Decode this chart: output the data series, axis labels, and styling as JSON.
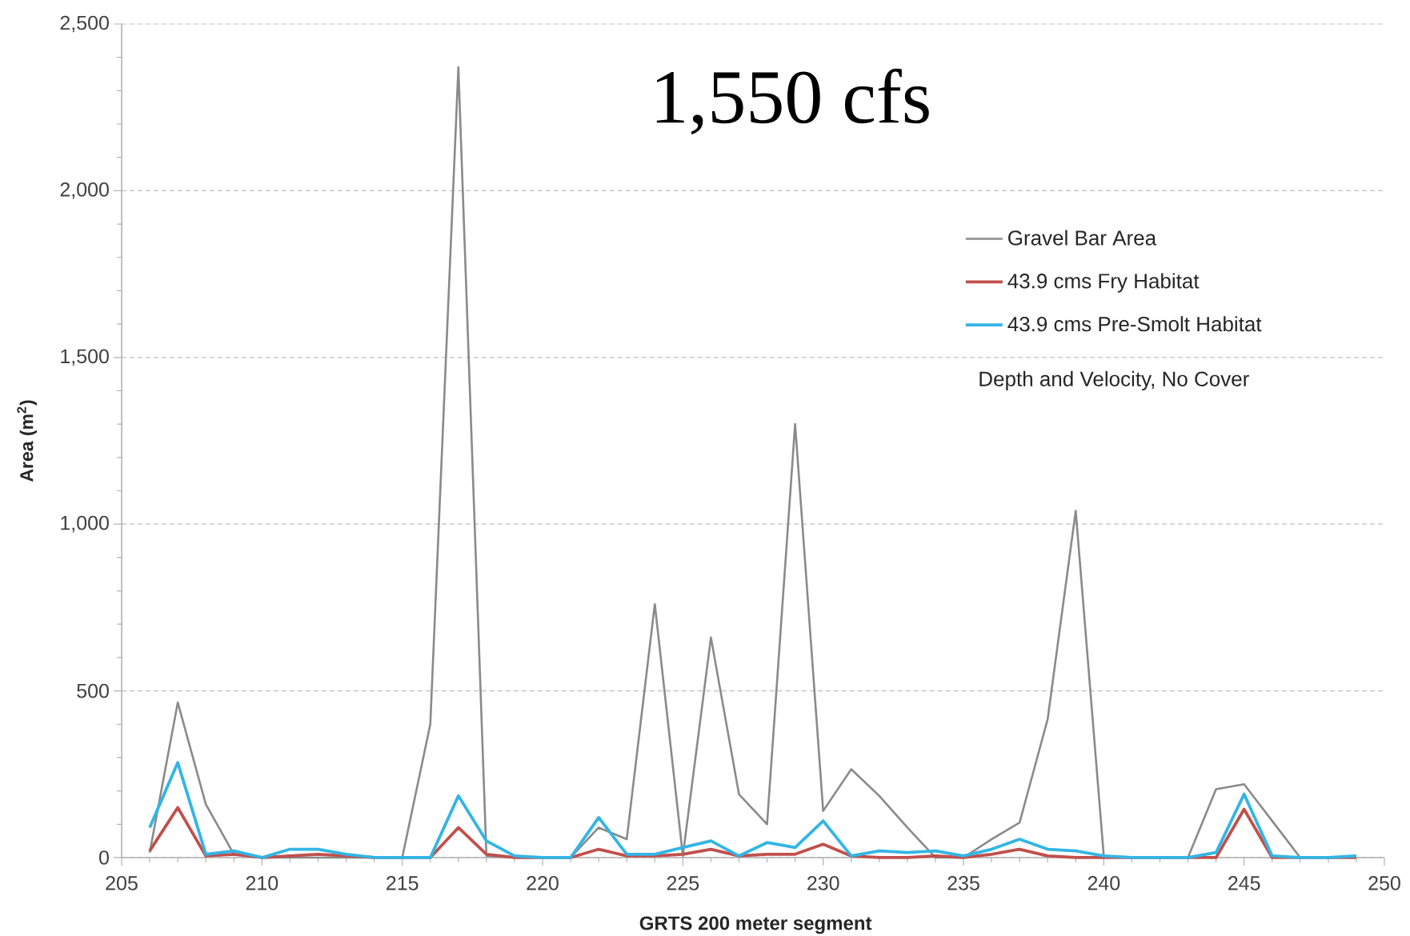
{
  "chart_data": {
    "type": "line",
    "title": "1,550 cfs",
    "xlabel": "GRTS 200 meter segment",
    "ylabel": "Area (m$^{2}$)",
    "annotations": [
      "Depth and Velocity, No Cover"
    ],
    "x": [
      206,
      207,
      208,
      209,
      210,
      211,
      212,
      213,
      214,
      215,
      216,
      217,
      218,
      219,
      220,
      221,
      222,
      223,
      224,
      225,
      226,
      227,
      228,
      229,
      230,
      231,
      232,
      233,
      234,
      235,
      236,
      237,
      238,
      239,
      240,
      241,
      242,
      243,
      244,
      245,
      246,
      247,
      248,
      249
    ],
    "series": [
      {
        "name": "Gravel Bar Area",
        "color": "#8a8a8a",
        "values": [
          15,
          465,
          160,
          10,
          0,
          0,
          0,
          0,
          0,
          0,
          400,
          2370,
          5,
          0,
          0,
          0,
          90,
          55,
          760,
          5,
          660,
          190,
          100,
          1300,
          140,
          265,
          185,
          90,
          0,
          0,
          55,
          105,
          415,
          1040,
          5,
          0,
          0,
          0,
          205,
          220,
          110,
          0,
          0,
          5
        ]
      },
      {
        "name": "43.9 cms Fry Habitat",
        "color": "#c0504d",
        "values": [
          20,
          150,
          5,
          10,
          0,
          5,
          10,
          5,
          0,
          0,
          0,
          90,
          10,
          0,
          0,
          0,
          25,
          5,
          5,
          10,
          25,
          5,
          10,
          10,
          40,
          5,
          0,
          0,
          5,
          0,
          10,
          25,
          5,
          0,
          0,
          0,
          0,
          0,
          0,
          145,
          0,
          0,
          0,
          0
        ]
      },
      {
        "name": "43.9 cms Pre-Smolt Habitat",
        "color": "#33b5e5",
        "values": [
          90,
          285,
          10,
          20,
          0,
          25,
          25,
          10,
          0,
          0,
          0,
          185,
          50,
          5,
          0,
          0,
          120,
          10,
          10,
          30,
          50,
          5,
          45,
          30,
          110,
          5,
          20,
          15,
          20,
          5,
          25,
          55,
          25,
          20,
          5,
          0,
          0,
          0,
          15,
          190,
          5,
          0,
          0,
          5
        ]
      }
    ],
    "xlim": [
      205,
      250
    ],
    "ylim": [
      0,
      2500
    ],
    "xticks": [
      205,
      {
        "value": 206,
        "label": null
      },
      {
        "value": 207,
        "label": null
      },
      {
        "value": 208,
        "label": null
      },
      {
        "value": 209,
        "label": null
      },
      210,
      {
        "value": 211,
        "label": null
      },
      {
        "value": 212,
        "label": null
      },
      {
        "value": 213,
        "label": null
      },
      {
        "value": 214,
        "label": null
      },
      215,
      {
        "value": 216,
        "label": null
      },
      {
        "value": 217,
        "label": null
      },
      {
        "value": 218,
        "label": null
      },
      {
        "value": 219,
        "label": null
      },
      220,
      {
        "value": 221,
        "label": null
      },
      {
        "value": 222,
        "label": null
      },
      {
        "value": 223,
        "label": null
      },
      {
        "value": 224,
        "label": null
      },
      225,
      {
        "value": 226,
        "label": null
      },
      {
        "value": 227,
        "label": null
      },
      {
        "value": 228,
        "label": null
      },
      {
        "value": 229,
        "label": null
      },
      230,
      {
        "value": 231,
        "label": null
      },
      {
        "value": 232,
        "label": null
      },
      {
        "value": 233,
        "label": null
      },
      {
        "value": 234,
        "label": null
      },
      235,
      {
        "value": 236,
        "label": null
      },
      {
        "value": 237,
        "label": null
      },
      {
        "value": 238,
        "label": null
      },
      {
        "value": 239,
        "label": null
      },
      240,
      {
        "value": 241,
        "label": null
      },
      {
        "value": 242,
        "label": null
      },
      {
        "value": 243,
        "label": null
      },
      {
        "value": 244,
        "label": null
      },
      245,
      {
        "value": 246,
        "label": null
      },
      {
        "value": 247,
        "label": null
      },
      {
        "value": 248,
        "label": null
      },
      {
        "value": 249,
        "label": null
      },
      250
    ],
    "yticks": [
      0,
      {
        "value": 100,
        "label": null
      },
      {
        "value": 200,
        "label": null
      },
      {
        "value": 300,
        "label": null
      },
      {
        "value": 400,
        "label": null
      },
      500,
      {
        "value": 600,
        "label": null
      },
      {
        "value": 700,
        "label": null
      },
      {
        "value": 800,
        "label": null
      },
      {
        "value": 900,
        "label": null
      },
      {
        "value": 1000,
        "label": "1,000"
      },
      {
        "value": 1100,
        "label": null
      },
      {
        "value": 1200,
        "label": null
      },
      {
        "value": 1300,
        "label": null
      },
      {
        "value": 1400,
        "label": null
      },
      {
        "value": 1500,
        "label": "1,500"
      },
      {
        "value": 1600,
        "label": null
      },
      {
        "value": 1700,
        "label": null
      },
      {
        "value": 1800,
        "label": null
      },
      {
        "value": 1900,
        "label": null
      },
      {
        "value": 2000,
        "label": "2,000"
      },
      {
        "value": 2100,
        "label": null
      },
      {
        "value": 2200,
        "label": null
      },
      {
        "value": 2300,
        "label": null
      },
      {
        "value": 2400,
        "label": null
      },
      {
        "value": 2500,
        "label": "2,500"
      }
    ],
    "grid": "y",
    "legend": "top right"
  }
}
